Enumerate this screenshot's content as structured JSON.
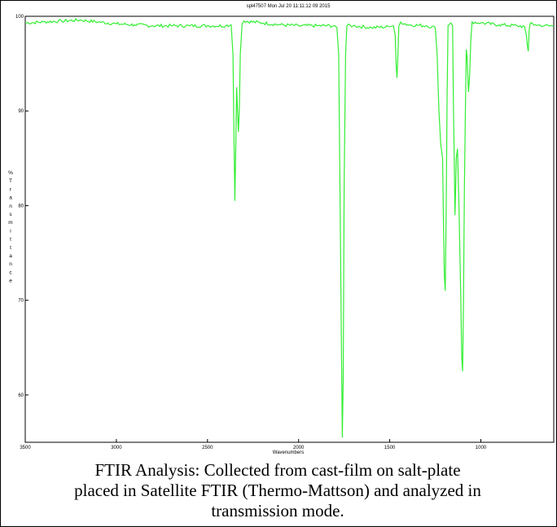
{
  "chart_data": {
    "type": "line",
    "title": "spl47507   Mon Jul 20 11:11:12 09 2015",
    "xlabel": "Wavenumbers",
    "ylabel": "% Transmittance",
    "xlim": [
      3500,
      600
    ],
    "ylim": [
      55,
      100
    ],
    "x_ticks": [
      3500,
      3000,
      2500,
      2000,
      1500,
      1000
    ],
    "y_ticks": [
      60,
      70,
      90,
      100
    ],
    "x_tick_labels": [
      "3500",
      "3000",
      "2500",
      "2000",
      "1500",
      "1000"
    ],
    "y_tick_labels": [
      "60",
      "70",
      "90",
      "100"
    ],
    "y_tick_80_label": "80",
    "grid": false,
    "line_color": "#33ee33",
    "series": [
      {
        "points": [
          [
            3500,
            99.3
          ],
          [
            3400,
            99.4
          ],
          [
            3300,
            99.5
          ],
          [
            3200,
            99.6
          ],
          [
            3100,
            99.4
          ],
          [
            3000,
            99.2
          ],
          [
            2900,
            99.1
          ],
          [
            2800,
            99.0
          ],
          [
            2700,
            99.0
          ],
          [
            2600,
            99.0
          ],
          [
            2500,
            99.0
          ],
          [
            2400,
            99.0
          ],
          [
            2370,
            99.1
          ],
          [
            2360,
            96.0
          ],
          [
            2355,
            88.0
          ],
          [
            2350,
            80.5
          ],
          [
            2345,
            86.0
          ],
          [
            2340,
            92.5
          ],
          [
            2335,
            90.0
          ],
          [
            2330,
            87.8
          ],
          [
            2325,
            90.5
          ],
          [
            2320,
            96.0
          ],
          [
            2310,
            99.2
          ],
          [
            2300,
            99.5
          ],
          [
            2200,
            99.3
          ],
          [
            2100,
            99.1
          ],
          [
            2000,
            99.0
          ],
          [
            1900,
            99.0
          ],
          [
            1800,
            99.0
          ],
          [
            1790,
            98.8
          ],
          [
            1780,
            96.0
          ],
          [
            1772,
            80.0
          ],
          [
            1765,
            65.0
          ],
          [
            1760,
            55.5
          ],
          [
            1755,
            62.0
          ],
          [
            1750,
            82.0
          ],
          [
            1742,
            96.0
          ],
          [
            1735,
            99.0
          ],
          [
            1700,
            99.0
          ],
          [
            1600,
            98.8
          ],
          [
            1500,
            98.9
          ],
          [
            1480,
            99.0
          ],
          [
            1470,
            98.0
          ],
          [
            1465,
            95.0
          ],
          [
            1460,
            93.5
          ],
          [
            1455,
            96.0
          ],
          [
            1450,
            99.0
          ],
          [
            1440,
            99.4
          ],
          [
            1400,
            99.1
          ],
          [
            1300,
            99.0
          ],
          [
            1250,
            98.8
          ],
          [
            1240,
            96.0
          ],
          [
            1230,
            90.0
          ],
          [
            1220,
            86.5
          ],
          [
            1210,
            85.0
          ],
          [
            1205,
            78.0
          ],
          [
            1200,
            72.5
          ],
          [
            1195,
            71.0
          ],
          [
            1190,
            80.0
          ],
          [
            1185,
            92.0
          ],
          [
            1180,
            99.0
          ],
          [
            1165,
            99.3
          ],
          [
            1155,
            99.0
          ],
          [
            1150,
            90.0
          ],
          [
            1145,
            84.0
          ],
          [
            1142,
            79.0
          ],
          [
            1138,
            82.0
          ],
          [
            1135,
            85.0
          ],
          [
            1128,
            86.0
          ],
          [
            1120,
            80.0
          ],
          [
            1110,
            70.0
          ],
          [
            1105,
            64.0
          ],
          [
            1100,
            62.5
          ],
          [
            1095,
            70.0
          ],
          [
            1090,
            82.0
          ],
          [
            1085,
            90.0
          ],
          [
            1080,
            96.5
          ],
          [
            1075,
            95.5
          ],
          [
            1068,
            92.0
          ],
          [
            1062,
            93.5
          ],
          [
            1055,
            97.5
          ],
          [
            1048,
            99.4
          ],
          [
            1000,
            99.3
          ],
          [
            900,
            99.1
          ],
          [
            800,
            99.0
          ],
          [
            760,
            98.9
          ],
          [
            750,
            98.0
          ],
          [
            745,
            97.0
          ],
          [
            740,
            96.3
          ],
          [
            735,
            98.5
          ],
          [
            730,
            99.2
          ],
          [
            700,
            99.1
          ],
          [
            650,
            99.0
          ],
          [
            620,
            99.0
          ],
          [
            600,
            99.0
          ]
        ]
      }
    ]
  },
  "caption": {
    "line1": "FTIR Analysis: Collected from cast-film on salt-plate",
    "line2": "placed in Satellite FTIR (Thermo-Mattson) and analyzed in",
    "line3": "transmission mode."
  }
}
